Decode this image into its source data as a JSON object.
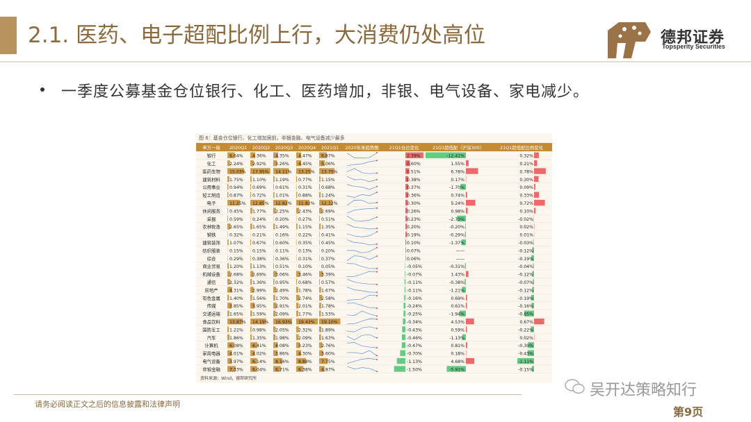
{
  "header": {
    "title": "2.1. 医药、电子超配比例上行，大消费仍处高位",
    "brand_cn": "德邦证券",
    "brand_en": "Topsperity Securities",
    "accent_color": "#b7935e"
  },
  "bullet": {
    "text": "一季度公募基金仓位银行、化工、医药增加，非银、电气设备、家电减少。"
  },
  "figure": {
    "caption": "图 6：基金仓位银行、化工增加居前，非银金融、电气设备减少最多",
    "source": "资料来源：Wind，德邦研究所",
    "columns": [
      "申万一级",
      "2020Q1",
      "2020Q2",
      "2020Q3",
      "2020Q4",
      "2021Q1",
      "2020年来趋势图",
      "21Q1仓位变化",
      "21Q1超低配（沪深300）",
      "21Q1超低配比例变化"
    ],
    "rows": [
      {
        "name": "银行",
        "q1": "6.64%",
        "q2": "4.36%",
        "q3": "4.35%",
        "q4": "4.47%",
        "q5": "6.87%",
        "chg": "2.39%",
        "ow": "-12.41%",
        "owchg": "0.32%"
      },
      {
        "name": "化工",
        "q1": "2.24%",
        "q2": "2.92%",
        "q3": "3.26%",
        "q4": "4.45%",
        "q5": "5.06%",
        "chg": "0.60%",
        "ow": "1.55%",
        "owchg": "0.21%"
      },
      {
        "name": "医药生物",
        "q1": "15.03%",
        "q2": "17.95%",
        "q3": "14.11%",
        "q4": "13.25%",
        "q5": "13.75%",
        "chg": "0.51%",
        "ow": "6.78%",
        "owchg": "0.78%"
      },
      {
        "name": "建筑材料",
        "q1": "1.75%",
        "q2": "1.10%",
        "q3": "1.19%",
        "q4": "0.77%",
        "q5": "1.15%",
        "chg": "0.38%",
        "ow": "0.17%",
        "owchg": "0.30%"
      },
      {
        "name": "公用事业",
        "q1": "0.94%",
        "q2": "0.69%",
        "q3": "0.61%",
        "q4": "0.31%",
        "q5": "0.68%",
        "chg": "0.37%",
        "ow": "-1.70%",
        "owchg": "0.09%"
      },
      {
        "name": "轻工制造",
        "q1": "0.87%",
        "q2": "0.72%",
        "q3": "1.01%",
        "q4": "0.88%",
        "q5": "1.24%",
        "chg": "0.36%",
        "ow": "0.74%",
        "owchg": "0.33%"
      },
      {
        "name": "电子",
        "q1": "11.25%",
        "q2": "12.85%",
        "q3": "12.82%",
        "q4": "11.82%",
        "q5": "12.12%",
        "chg": "0.30%",
        "ow": "5.24%",
        "owchg": "0.72%"
      },
      {
        "name": "休闲服务",
        "q1": "0.45%",
        "q2": "1.77%",
        "q3": "2.25%",
        "q4": "2.43%",
        "q5": "2.69%",
        "chg": "0.26%",
        "ow": "0.98%",
        "owchg": "0.10%"
      },
      {
        "name": "采掘",
        "q1": "0.59%",
        "q2": "0.24%",
        "q3": "0.20%",
        "q4": "0.27%",
        "q5": "0.51%",
        "chg": "0.23%",
        "ow": "-2.70%",
        "owchg": "-0.02%"
      },
      {
        "name": "农林牧渔",
        "q1": "2.65%",
        "q2": "1.65%",
        "q3": "1.49%",
        "q4": "1.15%",
        "q5": "1.35%",
        "chg": "0.20%",
        "ow": "-0.20%",
        "owchg": "0.02%"
      },
      {
        "name": "钢铁",
        "q1": "0.32%",
        "q2": "0.21%",
        "q3": "0.16%",
        "q4": "0.22%",
        "q5": "0.41%",
        "chg": "0.19%",
        "ow": "-0.29%",
        "owchg": "0.01%"
      },
      {
        "name": "建筑装饰",
        "q1": "1.07%",
        "q2": "0.67%",
        "q3": "0.60%",
        "q4": "0.35%",
        "q5": "0.45%",
        "chg": "0.10%",
        "ow": "-1.37%",
        "owchg": "-0.03%"
      },
      {
        "name": "纺织服装",
        "q1": "0.15%",
        "q2": "0.15%",
        "q3": "0.11%",
        "q4": "0.13%",
        "q5": "0.20%",
        "chg": "0.07%",
        "ow": "——",
        "owchg": "-0.12%"
      },
      {
        "name": "综合",
        "q1": "0.29%",
        "q2": "0.38%",
        "q3": "0.36%",
        "q4": "0.31%",
        "q5": "0.37%",
        "chg": "0.06%",
        "ow": "——",
        "owchg": "-0.19%"
      },
      {
        "name": "商业贸易",
        "q1": "1.20%",
        "q2": "1.13%",
        "q3": "0.51%",
        "q4": "0.10%",
        "q5": "0.05%",
        "chg": "-0.05%",
        "ow": "-0.31%",
        "owchg": "-0.04%"
      },
      {
        "name": "机械设备",
        "q1": "2.68%",
        "q2": "2.69%",
        "q3": "3.06%",
        "q4": "3.46%",
        "q5": "3.39%",
        "chg": "-0.07%",
        "ow": "1.43%",
        "owchg": "-0.12%"
      },
      {
        "name": "通信",
        "q1": "2.32%",
        "q2": "1.36%",
        "q3": "0.95%",
        "q4": "0.68%",
        "q5": "0.57%",
        "chg": "-0.11%",
        "ow": "-0.38%",
        "owchg": "-0.07%"
      },
      {
        "name": "房地产",
        "q1": "4.31%",
        "q2": "2.99%",
        "q3": "2.49%",
        "q4": "1.78%",
        "q5": "1.67%",
        "chg": "-0.11%",
        "ow": "-1.21%",
        "owchg": "-0.12%"
      },
      {
        "name": "有色金属",
        "q1": "1.40%",
        "q2": "1.56%",
        "q3": "1.70%",
        "q4": "2.74%",
        "q5": "2.58%",
        "chg": "-0.16%",
        "ow": "0.69%",
        "owchg": "-0.19%"
      },
      {
        "name": "传媒",
        "q1": "3.85%",
        "q2": "3.95%",
        "q3": "2.91%",
        "q4": "2.01%",
        "q5": "1.78%",
        "chg": "-0.24%",
        "ow": "0.61%",
        "owchg": "-0.16%"
      },
      {
        "name": "交通运输",
        "q1": "1.65%",
        "q2": "1.59%",
        "q3": "2.09%",
        "q4": "1.77%",
        "q5": "1.53%",
        "chg": "-0.25%",
        "ow": "-1.94%",
        "owchg": "-0.65%"
      },
      {
        "name": "食品饮料",
        "q1": "13.87%",
        "q2": "14.19%",
        "q3": "16.93%",
        "q4": "19.43%",
        "q5": "19.10%",
        "chg": "-0.34%",
        "ow": "4.53%",
        "owchg": "0.67%"
      },
      {
        "name": "国防军工",
        "q1": "1.22%",
        "q2": "0.98%",
        "q3": "2.05%",
        "q4": "2.32%",
        "q5": "1.89%",
        "chg": "-0.43%",
        "ow": "0.59%",
        "owchg": "-0.22%"
      },
      {
        "name": "汽车",
        "q1": "1.86%",
        "q2": "1.35%",
        "q3": "1.98%",
        "q4": "2.09%",
        "q5": "1.63%",
        "chg": "-0.46%",
        "ow": "-1.13%",
        "owchg": "0.02%"
      },
      {
        "name": "计算机",
        "q1": "6.08%",
        "q2": "6.41%",
        "q3": "4.08%",
        "q4": "3.23%",
        "q5": "2.76%",
        "chg": "-0.47%",
        "ow": "0.81%",
        "owchg": "-0.39%"
      },
      {
        "name": "家用电器",
        "q1": "4.01%",
        "q2": "4.02%",
        "q3": "3.86%",
        "q4": "4.30%",
        "q5": "3.60%",
        "chg": "-0.70%",
        "ow": "0.18%",
        "owchg": "-0.43%"
      },
      {
        "name": "电气设备",
        "q1": "3.97%",
        "q2": "6.14%",
        "q3": "8.16%",
        "q4": "8.88%",
        "q5": "7.75%",
        "chg": "-1.13%",
        "ow": "4.68%",
        "owchg": "-1.11%"
      },
      {
        "name": "非银金融",
        "q1": "7.33%",
        "q2": "6.04%",
        "q3": "6.71%",
        "q4": "6.38%",
        "q5": "4.87%",
        "chg": "-1.50%",
        "ow": "-5.91%",
        "owchg": "-0.15%"
      }
    ]
  },
  "footer": {
    "disclaimer": "请务必阅读正文之后的信息披露和法律声明",
    "wechat": "吴开达策略知行",
    "page": "第9页"
  },
  "colors": {
    "gold": "#c58a2e",
    "header_band": "#c28b34",
    "red": "#e8444a",
    "green": "#3fbf6a",
    "title_brown": "#8a6a3c"
  }
}
